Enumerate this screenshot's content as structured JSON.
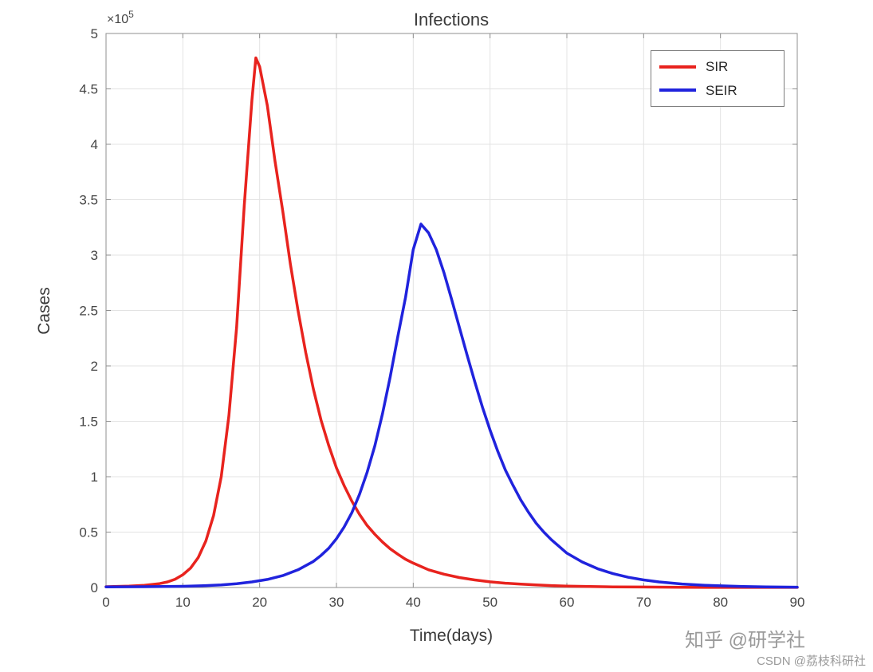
{
  "chart_data": {
    "type": "line",
    "title": "Infections",
    "xlabel": "Time(days)",
    "ylabel": "Cases",
    "y_exponent_base": "×10",
    "y_exponent_power": "5",
    "xlim": [
      0,
      90
    ],
    "ylim": [
      0,
      500000
    ],
    "ylim_units": [
      0,
      5
    ],
    "y_unit_multiplier": 100000,
    "grid": true,
    "x_tick_values": [
      0,
      10,
      20,
      30,
      40,
      50,
      60,
      70,
      80,
      90
    ],
    "x_tick_labels": [
      "0",
      "10",
      "20",
      "30",
      "40",
      "50",
      "60",
      "70",
      "80",
      "90"
    ],
    "y_tick_values": [
      0,
      0.5,
      1,
      1.5,
      2,
      2.5,
      3,
      3.5,
      4,
      4.5,
      5
    ],
    "y_tick_labels": [
      "0",
      "0.5",
      "1",
      "1.5",
      "2",
      "2.5",
      "3",
      "3.5",
      "4",
      "4.5",
      "5"
    ],
    "style": {
      "grid_color": "#e3e3e3",
      "box_color": "#8f8f8f",
      "line_width": 3.5
    },
    "legend": {
      "position": "top-right",
      "entries": [
        {
          "label": "SIR",
          "color": "#e8231e"
        },
        {
          "label": "SEIR",
          "color": "#2023dd"
        }
      ]
    },
    "series": [
      {
        "name": "SIR",
        "color": "#e8231e",
        "peak": {
          "x": 19.5,
          "y_units": 4.78
        },
        "points": [
          [
            0,
            0.007
          ],
          [
            3,
            0.012
          ],
          [
            5,
            0.02
          ],
          [
            7,
            0.035
          ],
          [
            8,
            0.05
          ],
          [
            9,
            0.075
          ],
          [
            10,
            0.115
          ],
          [
            11,
            0.175
          ],
          [
            12,
            0.27
          ],
          [
            13,
            0.42
          ],
          [
            14,
            0.65
          ],
          [
            15,
            1.0
          ],
          [
            16,
            1.55
          ],
          [
            17,
            2.35
          ],
          [
            18,
            3.45
          ],
          [
            19,
            4.4
          ],
          [
            19.5,
            4.78
          ],
          [
            20,
            4.7
          ],
          [
            21,
            4.35
          ],
          [
            22,
            3.85
          ],
          [
            23,
            3.4
          ],
          [
            24,
            2.92
          ],
          [
            25,
            2.5
          ],
          [
            26,
            2.12
          ],
          [
            27,
            1.79
          ],
          [
            28,
            1.51
          ],
          [
            29,
            1.28
          ],
          [
            30,
            1.08
          ],
          [
            31,
            0.92
          ],
          [
            32,
            0.78
          ],
          [
            33,
            0.66
          ],
          [
            34,
            0.56
          ],
          [
            35,
            0.48
          ],
          [
            36,
            0.41
          ],
          [
            37,
            0.35
          ],
          [
            38,
            0.3
          ],
          [
            39,
            0.255
          ],
          [
            40,
            0.22
          ],
          [
            42,
            0.16
          ],
          [
            44,
            0.12
          ],
          [
            46,
            0.09
          ],
          [
            48,
            0.068
          ],
          [
            50,
            0.051
          ],
          [
            52,
            0.039
          ],
          [
            54,
            0.03
          ],
          [
            56,
            0.023
          ],
          [
            58,
            0.017
          ],
          [
            60,
            0.013
          ],
          [
            63,
            0.009
          ],
          [
            66,
            0.006
          ],
          [
            70,
            0.004
          ],
          [
            75,
            0.002
          ],
          [
            80,
            0.001
          ],
          [
            85,
            0.001
          ],
          [
            90,
            0.001
          ]
        ]
      },
      {
        "name": "SEIR",
        "color": "#2023dd",
        "peak": {
          "x": 41,
          "y_units": 3.28
        },
        "points": [
          [
            0,
            0.005
          ],
          [
            5,
            0.007
          ],
          [
            10,
            0.011
          ],
          [
            13,
            0.017
          ],
          [
            15,
            0.024
          ],
          [
            17,
            0.034
          ],
          [
            19,
            0.05
          ],
          [
            21,
            0.073
          ],
          [
            23,
            0.107
          ],
          [
            25,
            0.16
          ],
          [
            27,
            0.235
          ],
          [
            28,
            0.29
          ],
          [
            29,
            0.355
          ],
          [
            30,
            0.44
          ],
          [
            31,
            0.545
          ],
          [
            32,
            0.675
          ],
          [
            33,
            0.84
          ],
          [
            34,
            1.04
          ],
          [
            35,
            1.28
          ],
          [
            36,
            1.57
          ],
          [
            37,
            1.9
          ],
          [
            38,
            2.27
          ],
          [
            39,
            2.62
          ],
          [
            40,
            3.05
          ],
          [
            41,
            3.28
          ],
          [
            42,
            3.2
          ],
          [
            43,
            3.05
          ],
          [
            44,
            2.84
          ],
          [
            45,
            2.6
          ],
          [
            46,
            2.35
          ],
          [
            47,
            2.1
          ],
          [
            48,
            1.86
          ],
          [
            49,
            1.63
          ],
          [
            50,
            1.42
          ],
          [
            51,
            1.23
          ],
          [
            52,
            1.06
          ],
          [
            53,
            0.92
          ],
          [
            54,
            0.79
          ],
          [
            55,
            0.68
          ],
          [
            56,
            0.58
          ],
          [
            57,
            0.5
          ],
          [
            58,
            0.43
          ],
          [
            59,
            0.37
          ],
          [
            60,
            0.31
          ],
          [
            62,
            0.23
          ],
          [
            64,
            0.17
          ],
          [
            66,
            0.125
          ],
          [
            68,
            0.092
          ],
          [
            70,
            0.068
          ],
          [
            72,
            0.05
          ],
          [
            75,
            0.032
          ],
          [
            78,
            0.02
          ],
          [
            80,
            0.015
          ],
          [
            83,
            0.009
          ],
          [
            86,
            0.006
          ],
          [
            90,
            0.003
          ]
        ]
      }
    ]
  },
  "watermarks": {
    "zhihu": "知乎 @研学社",
    "csdn": "CSDN @荔枝科研社"
  }
}
